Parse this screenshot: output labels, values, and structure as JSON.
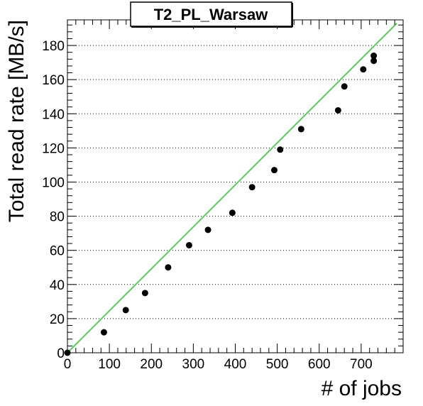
{
  "chart_data": {
    "type": "scatter",
    "title": "T2_PL_Warsaw",
    "xlabel": "# of jobs",
    "ylabel": "Total read rate [MB/s]",
    "xlim": [
      0,
      800
    ],
    "ylim": [
      0,
      195
    ],
    "x_ticks": [
      0,
      100,
      200,
      300,
      400,
      500,
      600,
      700
    ],
    "y_ticks": [
      0,
      20,
      40,
      60,
      80,
      100,
      120,
      140,
      160,
      180
    ],
    "grid": "horizontal-dotted",
    "series": [
      {
        "values": [
          {
            "x": 0,
            "y": 0
          },
          {
            "x": 87,
            "y": 12
          },
          {
            "x": 139,
            "y": 25
          },
          {
            "x": 185,
            "y": 35
          },
          {
            "x": 240,
            "y": 50
          },
          {
            "x": 290,
            "y": 63
          },
          {
            "x": 335,
            "y": 72
          },
          {
            "x": 393,
            "y": 82
          },
          {
            "x": 440,
            "y": 97
          },
          {
            "x": 493,
            "y": 107
          },
          {
            "x": 507,
            "y": 119
          },
          {
            "x": 557,
            "y": 131
          },
          {
            "x": 645,
            "y": 142
          },
          {
            "x": 660,
            "y": 156
          },
          {
            "x": 705,
            "y": 166
          },
          {
            "x": 730,
            "y": 171
          },
          {
            "x": 730,
            "y": 174
          }
        ]
      }
    ],
    "fit_line": {
      "color": "#55cc55",
      "points": [
        {
          "x": 0,
          "y": 0
        },
        {
          "x": 785,
          "y": 193
        }
      ]
    },
    "marker_color": "#000000"
  }
}
